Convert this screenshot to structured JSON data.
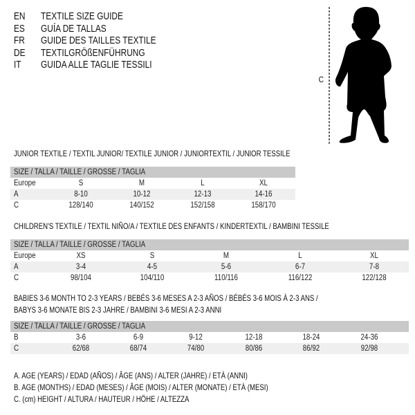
{
  "languages": [
    {
      "code": "EN",
      "title": "TEXTILE SIZE GUIDE"
    },
    {
      "code": "ES",
      "title": "GUÍA DE TALLAS"
    },
    {
      "code": "FR",
      "title": "GUIDE DES TAILLES TEXTILE"
    },
    {
      "code": "DE",
      "title": "TEXTILGRÖßENFÜHRUNG"
    },
    {
      "code": "IT",
      "title": "GUIDA ALLE TAGLIE TESSILI"
    }
  ],
  "figure": {
    "measure_label": "C",
    "icon": "child-silhouette"
  },
  "junior": {
    "title": "JUNIOR TEXTILE / TEXTIL JUNIOR/ TEXTILE JUNIOR / JUNIORTEXTIL / JUNIOR TESSILE",
    "header": "SIZE / TALLA / TAILLE / GRÖSSE / TAGLIA",
    "rows": [
      {
        "label": "Europe",
        "values": [
          "S",
          "M",
          "L",
          "XL"
        ]
      },
      {
        "label": "A",
        "values": [
          "8-10",
          "10-12",
          "12-13",
          "14-16"
        ]
      },
      {
        "label": "C",
        "values": [
          "128/140",
          "140/152",
          "152/158",
          "158/170"
        ]
      }
    ]
  },
  "children": {
    "title": "CHILDREN'S TEXTILE / TEXTIL NIÑO/A / TEXTILE DES ENFANTS / KINDERTEXTIL / BAMBINI TESSILE",
    "header": "SIZE / TALLA / TAILLE / GRÖSSE / TAGLIA",
    "rows": [
      {
        "label": "Europe",
        "values": [
          "XS",
          "S",
          "M",
          "L",
          "XL"
        ]
      },
      {
        "label": "A",
        "values": [
          "3-4",
          "4-5",
          "5-6",
          "6-7",
          "7-8"
        ]
      },
      {
        "label": "C",
        "values": [
          "98/104",
          "104/110",
          "110/116",
          "116/122",
          "122/128"
        ]
      }
    ]
  },
  "babies": {
    "title_line1": "BABIES 3-6 MONTH TO 2-3 YEARS / BEBÉS 3-6 MESES A 2-3 AÑOS / BÉBÉS 3-6 MOIS À 2-3 ANS /",
    "title_line2": "BABYS 3-6 MONATE BIS 2-3 JAHRE / BAMBINI 3-6 MESI A 2-3 ANNI",
    "header": "SIZE / TALLA / TAILLE / GRÖSSE / TAGLIA",
    "rows": [
      {
        "label": "B",
        "values": [
          "3-6",
          "6-9",
          "9-12",
          "12-18",
          "18-24",
          "24-36"
        ]
      },
      {
        "label": "C",
        "values": [
          "62/68",
          "68/74",
          "74/80",
          "80/86",
          "86/92",
          "92/98"
        ]
      }
    ]
  },
  "legend": [
    "A. AGE (YEARS) / EDAD (AÑOS) / ÂGE (ANS) / ALTER (JAHRE) / ETÀ (ANNI)",
    "B. AGE (MONTHS) / EDAD (MESES) / ÂGE (MOIS) / ALTER (MONATE) / ETÀ (MESI)",
    "C. (cm) HEIGHT / ALTURA / HAUTEUR / HÖHE / ALTEZZA"
  ]
}
